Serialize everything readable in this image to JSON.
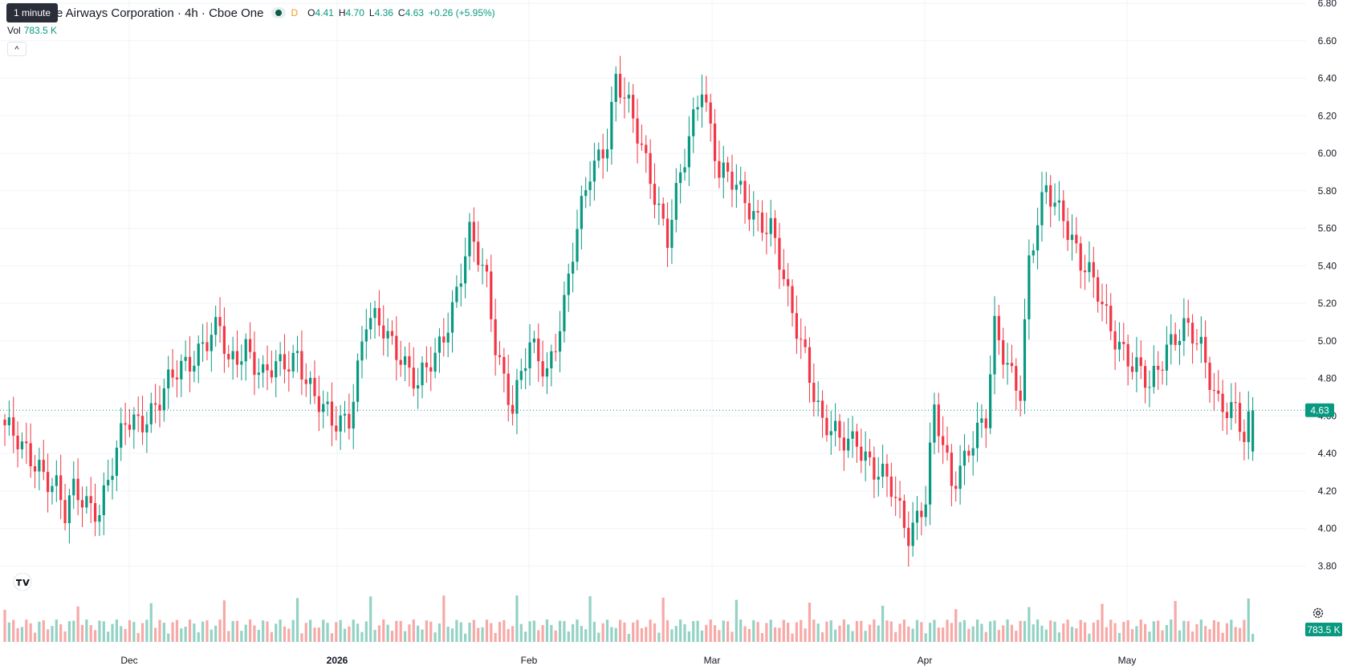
{
  "legend": {
    "tooltip": "1 minute",
    "title": "e Airways Corporation · 4h · Cboe One",
    "delay": "D",
    "o_label": "O",
    "o": "4.41",
    "h_label": "H",
    "h": "4.70",
    "l_label": "L",
    "l": "4.36",
    "c_label": "C",
    "c": "4.63",
    "change": "+0.26 (+5.95%)",
    "vol_label": "Vol",
    "vol": "783.5 K",
    "collapse_icon": "chevron-up-icon"
  },
  "price_axis": {
    "ticks": [
      "6.80",
      "6.60",
      "6.40",
      "6.20",
      "6.00",
      "5.80",
      "5.60",
      "5.40",
      "5.20",
      "5.00",
      "4.80",
      "4.60",
      "4.40",
      "4.20",
      "4.00",
      "3.80"
    ],
    "last_price": "4.63",
    "last_volume": "783.5 K"
  },
  "time_axis": {
    "ticks": [
      "Dec",
      "2026",
      "Feb",
      "Mar",
      "Apr",
      "May"
    ]
  },
  "colors": {
    "up": "#089981",
    "down": "#f23645",
    "up_vol": "#93d2c4",
    "down_vol": "#f7a9a7",
    "grid": "#f0f3fa"
  },
  "icons": {
    "logo": "tradingview-logo-icon",
    "settings": "gear-icon"
  },
  "chart_data": {
    "type": "candlestick",
    "interval": "4h",
    "ylim": [
      3.78,
      6.8
    ],
    "last": 4.63,
    "anchors": [
      [
        0,
        4.55
      ],
      [
        4,
        4.4
      ],
      [
        8,
        4.35
      ],
      [
        12,
        4.22
      ],
      [
        14,
        4.05
      ],
      [
        16,
        4.18
      ],
      [
        22,
        4.12
      ],
      [
        26,
        4.38
      ],
      [
        28,
        4.55
      ],
      [
        32,
        4.6
      ],
      [
        36,
        4.68
      ],
      [
        40,
        4.82
      ],
      [
        46,
        5.0
      ],
      [
        50,
        5.05
      ],
      [
        52,
        4.85
      ],
      [
        56,
        5.0
      ],
      [
        60,
        4.8
      ],
      [
        64,
        4.85
      ],
      [
        68,
        4.95
      ],
      [
        72,
        4.68
      ],
      [
        76,
        4.55
      ],
      [
        80,
        4.62
      ],
      [
        84,
        5.1
      ],
      [
        88,
        5.05
      ],
      [
        92,
        4.95
      ],
      [
        96,
        4.75
      ],
      [
        100,
        4.9
      ],
      [
        104,
        5.2
      ],
      [
        108,
        5.55
      ],
      [
        112,
        5.3
      ],
      [
        114,
        5.0
      ],
      [
        118,
        4.65
      ],
      [
        122,
        4.95
      ],
      [
        126,
        4.85
      ],
      [
        130,
        5.2
      ],
      [
        132,
        5.45
      ],
      [
        136,
        5.9
      ],
      [
        140,
        6.1
      ],
      [
        142,
        6.4
      ],
      [
        146,
        6.15
      ],
      [
        150,
        5.9
      ],
      [
        154,
        5.55
      ],
      [
        158,
        5.95
      ],
      [
        162,
        6.4
      ],
      [
        166,
        5.9
      ],
      [
        170,
        5.8
      ],
      [
        174,
        5.7
      ],
      [
        178,
        5.6
      ],
      [
        182,
        5.2
      ],
      [
        186,
        4.95
      ],
      [
        190,
        4.55
      ],
      [
        194,
        4.45
      ],
      [
        198,
        4.5
      ],
      [
        202,
        4.3
      ],
      [
        206,
        4.2
      ],
      [
        210,
        4.0
      ],
      [
        214,
        4.15
      ],
      [
        216,
        4.6
      ],
      [
        220,
        4.25
      ],
      [
        224,
        4.45
      ],
      [
        228,
        4.55
      ],
      [
        230,
        5.05
      ],
      [
        234,
        4.85
      ],
      [
        236,
        4.75
      ],
      [
        238,
        5.4
      ],
      [
        242,
        5.8
      ],
      [
        246,
        5.7
      ],
      [
        250,
        5.4
      ],
      [
        254,
        5.25
      ],
      [
        258,
        5.05
      ],
      [
        262,
        4.85
      ],
      [
        266,
        4.75
      ],
      [
        270,
        5.0
      ],
      [
        274,
        5.05
      ],
      [
        278,
        4.95
      ],
      [
        282,
        4.7
      ],
      [
        286,
        4.6
      ],
      [
        288,
        4.45
      ],
      [
        290,
        4.63
      ]
    ],
    "candles": 291
  }
}
